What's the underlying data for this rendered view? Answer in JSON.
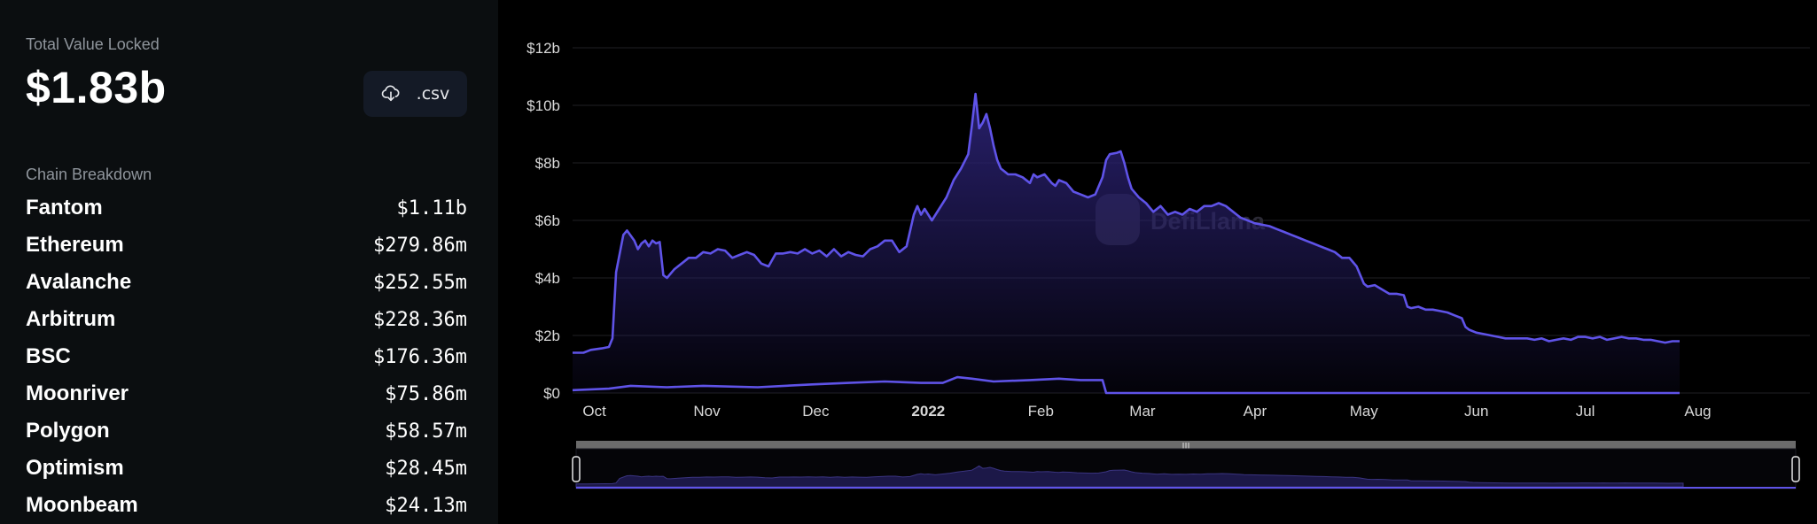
{
  "summary": {
    "tvl_label": "Total Value Locked",
    "tvl_value": "$1.83b",
    "csv_label": ".csv",
    "csv_icon": "cloud-download-icon"
  },
  "breakdown": {
    "title": "Chain Breakdown",
    "chains": [
      {
        "name": "Fantom",
        "tvl": "$1.11b"
      },
      {
        "name": "Ethereum",
        "tvl": "$279.86m"
      },
      {
        "name": "Avalanche",
        "tvl": "$252.55m"
      },
      {
        "name": "Arbitrum",
        "tvl": "$228.36m"
      },
      {
        "name": "BSC",
        "tvl": "$176.36m"
      },
      {
        "name": "Moonriver",
        "tvl": "$75.86m"
      },
      {
        "name": "Polygon",
        "tvl": "$58.57m"
      },
      {
        "name": "Optimism",
        "tvl": "$28.45m"
      },
      {
        "name": "Moonbeam",
        "tvl": "$24.13m"
      }
    ]
  },
  "watermark": "DefiLlama",
  "colors": {
    "line": "#5f53e8",
    "area_top": "#2a2170",
    "grid": "#1f1f24",
    "axis_text": "#d8d8d8",
    "panel_bg": "#0b0e10",
    "button_bg": "#141a26"
  },
  "chart_data": {
    "type": "area",
    "x_unit": "days from Oct 1, 2021",
    "x_ticks": [
      {
        "label": "Oct",
        "x": 0,
        "bold": false
      },
      {
        "label": "Nov",
        "x": 31,
        "bold": false
      },
      {
        "label": "Dec",
        "x": 61,
        "bold": false
      },
      {
        "label": "2022",
        "x": 92,
        "bold": true
      },
      {
        "label": "Feb",
        "x": 123,
        "bold": false
      },
      {
        "label": "Mar",
        "x": 151,
        "bold": false
      },
      {
        "label": "Apr",
        "x": 182,
        "bold": false
      },
      {
        "label": "May",
        "x": 212,
        "bold": false
      },
      {
        "label": "Jun",
        "x": 243,
        "bold": false
      },
      {
        "label": "Jul",
        "x": 273,
        "bold": false
      },
      {
        "label": "Aug",
        "x": 304,
        "bold": false
      }
    ],
    "y_ticks": [
      "$0",
      "$2b",
      "$4b",
      "$6b",
      "$8b",
      "$10b",
      "$12b"
    ],
    "ylim": [
      0,
      12
    ],
    "xlim": [
      -6,
      330
    ],
    "grid": true,
    "legend": "none",
    "series": [
      {
        "values": [
          [
            -6,
            1.4
          ],
          [
            -3,
            1.4
          ],
          [
            -1,
            1.5
          ],
          [
            2,
            1.55
          ],
          [
            4,
            1.6
          ],
          [
            5,
            1.9
          ],
          [
            6,
            4.2
          ],
          [
            8,
            5.5
          ],
          [
            9,
            5.65
          ],
          [
            11,
            5.3
          ],
          [
            12,
            5.0
          ],
          [
            13,
            5.2
          ],
          [
            14,
            5.3
          ],
          [
            15,
            5.1
          ],
          [
            16,
            5.3
          ],
          [
            17,
            5.2
          ],
          [
            18,
            5.25
          ],
          [
            19,
            4.1
          ],
          [
            20,
            4.0
          ],
          [
            22,
            4.3
          ],
          [
            24,
            4.5
          ],
          [
            26,
            4.7
          ],
          [
            28,
            4.7
          ],
          [
            30,
            4.9
          ],
          [
            32,
            4.85
          ],
          [
            34,
            5.0
          ],
          [
            36,
            4.95
          ],
          [
            38,
            4.7
          ],
          [
            40,
            4.8
          ],
          [
            42,
            4.9
          ],
          [
            44,
            4.8
          ],
          [
            46,
            4.5
          ],
          [
            48,
            4.4
          ],
          [
            50,
            4.85
          ],
          [
            52,
            4.85
          ],
          [
            54,
            4.9
          ],
          [
            56,
            4.85
          ],
          [
            58,
            5.0
          ],
          [
            60,
            4.85
          ],
          [
            62,
            4.95
          ],
          [
            64,
            4.75
          ],
          [
            66,
            5.0
          ],
          [
            68,
            4.75
          ],
          [
            70,
            4.9
          ],
          [
            72,
            4.8
          ],
          [
            74,
            4.75
          ],
          [
            76,
            5.0
          ],
          [
            78,
            5.1
          ],
          [
            80,
            5.3
          ],
          [
            82,
            5.3
          ],
          [
            84,
            4.9
          ],
          [
            86,
            5.1
          ],
          [
            88,
            6.2
          ],
          [
            89,
            6.5
          ],
          [
            90,
            6.2
          ],
          [
            91,
            6.4
          ],
          [
            93,
            6.0
          ],
          [
            95,
            6.4
          ],
          [
            97,
            6.8
          ],
          [
            99,
            7.4
          ],
          [
            101,
            7.8
          ],
          [
            103,
            8.3
          ],
          [
            104,
            9.3
          ],
          [
            105,
            10.4
          ],
          [
            106,
            9.2
          ],
          [
            107,
            9.4
          ],
          [
            108,
            9.7
          ],
          [
            109,
            9.2
          ],
          [
            110,
            8.6
          ],
          [
            111,
            8.1
          ],
          [
            112,
            7.8
          ],
          [
            113,
            7.7
          ],
          [
            114,
            7.6
          ],
          [
            116,
            7.6
          ],
          [
            118,
            7.5
          ],
          [
            120,
            7.3
          ],
          [
            121,
            7.6
          ],
          [
            122,
            7.5
          ],
          [
            124,
            7.6
          ],
          [
            126,
            7.3
          ],
          [
            127,
            7.2
          ],
          [
            128,
            7.4
          ],
          [
            130,
            7.3
          ],
          [
            132,
            7.0
          ],
          [
            134,
            6.9
          ],
          [
            136,
            6.8
          ],
          [
            138,
            6.9
          ],
          [
            140,
            7.5
          ],
          [
            141,
            8.1
          ],
          [
            142,
            8.3
          ],
          [
            144,
            8.35
          ],
          [
            145,
            8.4
          ],
          [
            146,
            8.0
          ],
          [
            147,
            7.5
          ],
          [
            148,
            7.1
          ],
          [
            150,
            6.8
          ],
          [
            152,
            6.6
          ],
          [
            154,
            6.3
          ],
          [
            156,
            6.5
          ],
          [
            158,
            6.2
          ],
          [
            160,
            6.3
          ],
          [
            162,
            6.2
          ],
          [
            164,
            6.4
          ],
          [
            166,
            6.3
          ],
          [
            168,
            6.5
          ],
          [
            170,
            6.5
          ],
          [
            172,
            6.6
          ],
          [
            174,
            6.5
          ],
          [
            176,
            6.3
          ],
          [
            178,
            6.1
          ],
          [
            180,
            6.0
          ],
          [
            182,
            5.9
          ],
          [
            184,
            5.85
          ],
          [
            186,
            5.8
          ],
          [
            188,
            5.7
          ],
          [
            190,
            5.6
          ],
          [
            192,
            5.5
          ],
          [
            194,
            5.4
          ],
          [
            196,
            5.3
          ],
          [
            198,
            5.2
          ],
          [
            200,
            5.1
          ],
          [
            202,
            5.0
          ],
          [
            204,
            4.9
          ],
          [
            206,
            4.7
          ],
          [
            208,
            4.7
          ],
          [
            210,
            4.4
          ],
          [
            211,
            4.1
          ],
          [
            212,
            3.8
          ],
          [
            213,
            3.7
          ],
          [
            215,
            3.75
          ],
          [
            217,
            3.6
          ],
          [
            219,
            3.45
          ],
          [
            221,
            3.45
          ],
          [
            223,
            3.4
          ],
          [
            224,
            3.0
          ],
          [
            225,
            2.95
          ],
          [
            227,
            3.0
          ],
          [
            229,
            2.9
          ],
          [
            231,
            2.9
          ],
          [
            233,
            2.85
          ],
          [
            235,
            2.8
          ],
          [
            237,
            2.7
          ],
          [
            239,
            2.6
          ],
          [
            240,
            2.3
          ],
          [
            241,
            2.2
          ],
          [
            243,
            2.1
          ],
          [
            245,
            2.05
          ],
          [
            247,
            2.0
          ],
          [
            249,
            1.95
          ],
          [
            251,
            1.9
          ],
          [
            253,
            1.9
          ],
          [
            255,
            1.9
          ],
          [
            257,
            1.9
          ],
          [
            259,
            1.85
          ],
          [
            261,
            1.9
          ],
          [
            263,
            1.8
          ],
          [
            265,
            1.85
          ],
          [
            267,
            1.9
          ],
          [
            269,
            1.85
          ],
          [
            271,
            1.95
          ],
          [
            273,
            1.95
          ],
          [
            275,
            1.9
          ],
          [
            277,
            1.95
          ],
          [
            279,
            1.85
          ],
          [
            281,
            1.9
          ],
          [
            283,
            1.95
          ],
          [
            285,
            1.9
          ],
          [
            287,
            1.9
          ],
          [
            289,
            1.85
          ],
          [
            291,
            1.85
          ],
          [
            293,
            1.8
          ],
          [
            295,
            1.75
          ],
          [
            297,
            1.8
          ],
          [
            299,
            1.8
          ]
        ]
      },
      {
        "values": [
          [
            -6,
            0.1
          ],
          [
            4,
            0.15
          ],
          [
            10,
            0.25
          ],
          [
            20,
            0.2
          ],
          [
            30,
            0.25
          ],
          [
            45,
            0.2
          ],
          [
            60,
            0.3
          ],
          [
            70,
            0.35
          ],
          [
            80,
            0.4
          ],
          [
            90,
            0.35
          ],
          [
            96,
            0.35
          ],
          [
            100,
            0.55
          ],
          [
            104,
            0.5
          ],
          [
            110,
            0.4
          ],
          [
            120,
            0.45
          ],
          [
            128,
            0.5
          ],
          [
            134,
            0.45
          ],
          [
            140,
            0.45
          ],
          [
            141,
            0.0
          ],
          [
            200,
            0.0
          ],
          [
            299,
            0.0
          ]
        ]
      }
    ]
  }
}
